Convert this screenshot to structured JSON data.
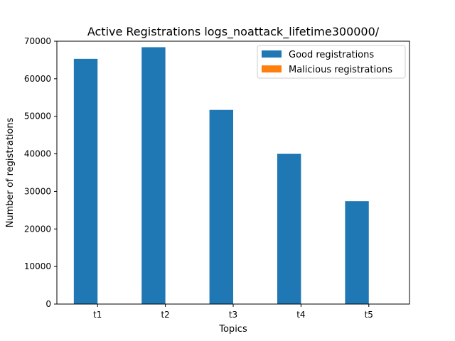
{
  "chart_data": {
    "type": "bar",
    "title": "Active Registrations logs_noattack_lifetime300000/",
    "xlabel": "Topics",
    "ylabel": "Number of registrations",
    "categories": [
      "t1",
      "t2",
      "t3",
      "t4",
      "t5"
    ],
    "series": [
      {
        "name": "Good registrations",
        "color": "#1f77b4",
        "values": [
          65300,
          68400,
          51700,
          40000,
          27400
        ]
      },
      {
        "name": "Malicious registrations",
        "color": "#ff7f0e",
        "values": [
          0,
          0,
          0,
          0,
          0
        ]
      }
    ],
    "ylim": [
      0,
      70000
    ],
    "yticks": [
      0,
      10000,
      20000,
      30000,
      40000,
      50000,
      60000,
      70000
    ],
    "legend_position": "top-right",
    "grid": false
  }
}
